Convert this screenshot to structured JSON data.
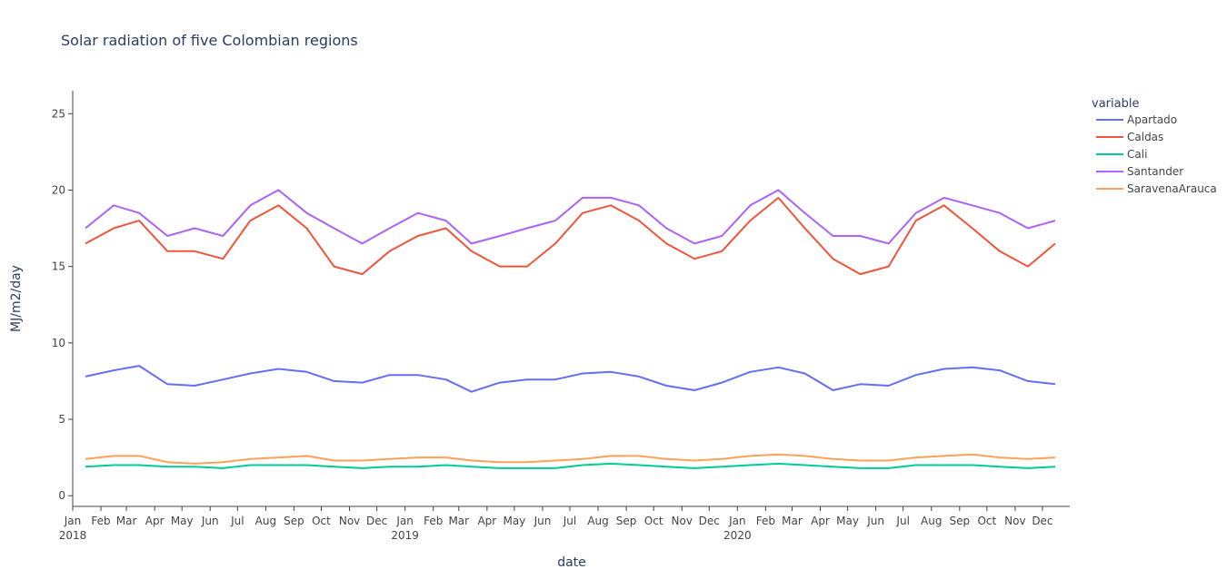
{
  "chart_data": {
    "type": "line",
    "title": "Solar radiation of five Colombian regions",
    "xlabel": "date",
    "ylabel": "MJ/m2/day",
    "x_range": [
      "2018-01-01",
      "2020-12-31"
    ],
    "ylim": [
      -0.7,
      26.5
    ],
    "y_ticks": [
      0,
      5,
      10,
      15,
      20,
      25
    ],
    "x_ticks": [
      {
        "month": "Jan",
        "year": "2018",
        "date": "2018-01-01"
      },
      {
        "month": "Feb",
        "date": "2018-02-01"
      },
      {
        "month": "Mar",
        "date": "2018-03-01"
      },
      {
        "month": "Apr",
        "date": "2018-04-01"
      },
      {
        "month": "May",
        "date": "2018-05-01"
      },
      {
        "month": "Jun",
        "date": "2018-06-01"
      },
      {
        "month": "Jul",
        "date": "2018-07-01"
      },
      {
        "month": "Aug",
        "date": "2018-08-01"
      },
      {
        "month": "Sep",
        "date": "2018-09-01"
      },
      {
        "month": "Oct",
        "date": "2018-10-01"
      },
      {
        "month": "Nov",
        "date": "2018-11-01"
      },
      {
        "month": "Dec",
        "date": "2018-12-01"
      },
      {
        "month": "Jan",
        "year": "2019",
        "date": "2019-01-01"
      },
      {
        "month": "Feb",
        "date": "2019-02-01"
      },
      {
        "month": "Mar",
        "date": "2019-03-01"
      },
      {
        "month": "Apr",
        "date": "2019-04-01"
      },
      {
        "month": "May",
        "date": "2019-05-01"
      },
      {
        "month": "Jun",
        "date": "2019-06-01"
      },
      {
        "month": "Jul",
        "date": "2019-07-01"
      },
      {
        "month": "Aug",
        "date": "2019-08-01"
      },
      {
        "month": "Sep",
        "date": "2019-09-01"
      },
      {
        "month": "Oct",
        "date": "2019-10-01"
      },
      {
        "month": "Nov",
        "date": "2019-11-01"
      },
      {
        "month": "Dec",
        "date": "2019-12-01"
      },
      {
        "month": "Jan",
        "year": "2020",
        "date": "2020-01-01"
      },
      {
        "month": "Feb",
        "date": "2020-02-01"
      },
      {
        "month": "Mar",
        "date": "2020-03-01"
      },
      {
        "month": "Apr",
        "date": "2020-04-01"
      },
      {
        "month": "May",
        "date": "2020-05-01"
      },
      {
        "month": "Jun",
        "date": "2020-06-01"
      },
      {
        "month": "Jul",
        "date": "2020-07-01"
      },
      {
        "month": "Aug",
        "date": "2020-08-01"
      },
      {
        "month": "Sep",
        "date": "2020-09-01"
      },
      {
        "month": "Oct",
        "date": "2020-10-01"
      },
      {
        "month": "Nov",
        "date": "2020-11-01"
      },
      {
        "month": "Dec",
        "date": "2020-12-01"
      }
    ],
    "legend": {
      "title": "variable",
      "placement": "right"
    },
    "grid": false,
    "series": [
      {
        "name": "Apartado",
        "color": "#636efa",
        "start": "2018-01-01",
        "step": "1 month",
        "values": [
          7.8,
          8.2,
          8.5,
          7.3,
          7.2,
          7.6,
          8.0,
          8.3,
          8.1,
          7.5,
          7.4,
          7.9,
          7.9,
          7.6,
          6.8,
          7.4,
          7.6,
          7.6,
          8.0,
          8.1,
          7.8,
          7.2,
          6.9,
          7.4,
          8.1,
          8.4,
          8.0,
          6.9,
          7.3,
          7.2,
          7.9,
          8.3,
          8.4,
          8.2,
          7.5,
          7.3
        ]
      },
      {
        "name": "Caldas",
        "color": "#ef553b",
        "start": "2018-01-01",
        "step": "1 month",
        "values": [
          16.5,
          17.5,
          18.0,
          16.0,
          16.0,
          15.5,
          18.0,
          19.0,
          17.5,
          15.0,
          14.5,
          16.0,
          17.0,
          17.5,
          16.0,
          15.0,
          15.0,
          16.5,
          18.5,
          19.0,
          18.0,
          16.5,
          15.5,
          16.0,
          18.0,
          19.5,
          17.5,
          15.5,
          14.5,
          15.0,
          18.0,
          19.0,
          17.5,
          16.0,
          15.0,
          16.5
        ]
      },
      {
        "name": "Cali",
        "color": "#00cc96",
        "start": "2018-01-01",
        "step": "1 month",
        "values": [
          1.9,
          2.0,
          2.0,
          1.9,
          1.9,
          1.8,
          2.0,
          2.0,
          2.0,
          1.9,
          1.8,
          1.9,
          1.9,
          2.0,
          1.9,
          1.8,
          1.8,
          1.8,
          2.0,
          2.1,
          2.0,
          1.9,
          1.8,
          1.9,
          2.0,
          2.1,
          2.0,
          1.9,
          1.8,
          1.8,
          2.0,
          2.0,
          2.0,
          1.9,
          1.8,
          1.9
        ]
      },
      {
        "name": "Santander",
        "color": "#ab63fa",
        "start": "2018-01-01",
        "step": "1 month",
        "values": [
          17.5,
          19.0,
          18.5,
          17.0,
          17.5,
          17.0,
          19.0,
          20.0,
          18.5,
          17.5,
          16.5,
          17.5,
          18.5,
          18.0,
          16.5,
          17.0,
          17.5,
          18.0,
          19.5,
          19.5,
          19.0,
          17.5,
          16.5,
          17.0,
          19.0,
          20.0,
          18.5,
          17.0,
          17.0,
          16.5,
          18.5,
          19.5,
          19.0,
          18.5,
          17.5,
          18.0
        ]
      },
      {
        "name": "SaravenaArauca",
        "color": "#ffa15a",
        "start": "2018-01-01",
        "step": "1 month",
        "values": [
          2.4,
          2.6,
          2.6,
          2.2,
          2.1,
          2.2,
          2.4,
          2.5,
          2.6,
          2.3,
          2.3,
          2.4,
          2.5,
          2.5,
          2.3,
          2.2,
          2.2,
          2.3,
          2.4,
          2.6,
          2.6,
          2.4,
          2.3,
          2.4,
          2.6,
          2.7,
          2.6,
          2.4,
          2.3,
          2.3,
          2.5,
          2.6,
          2.7,
          2.5,
          2.4,
          2.5
        ]
      }
    ]
  }
}
